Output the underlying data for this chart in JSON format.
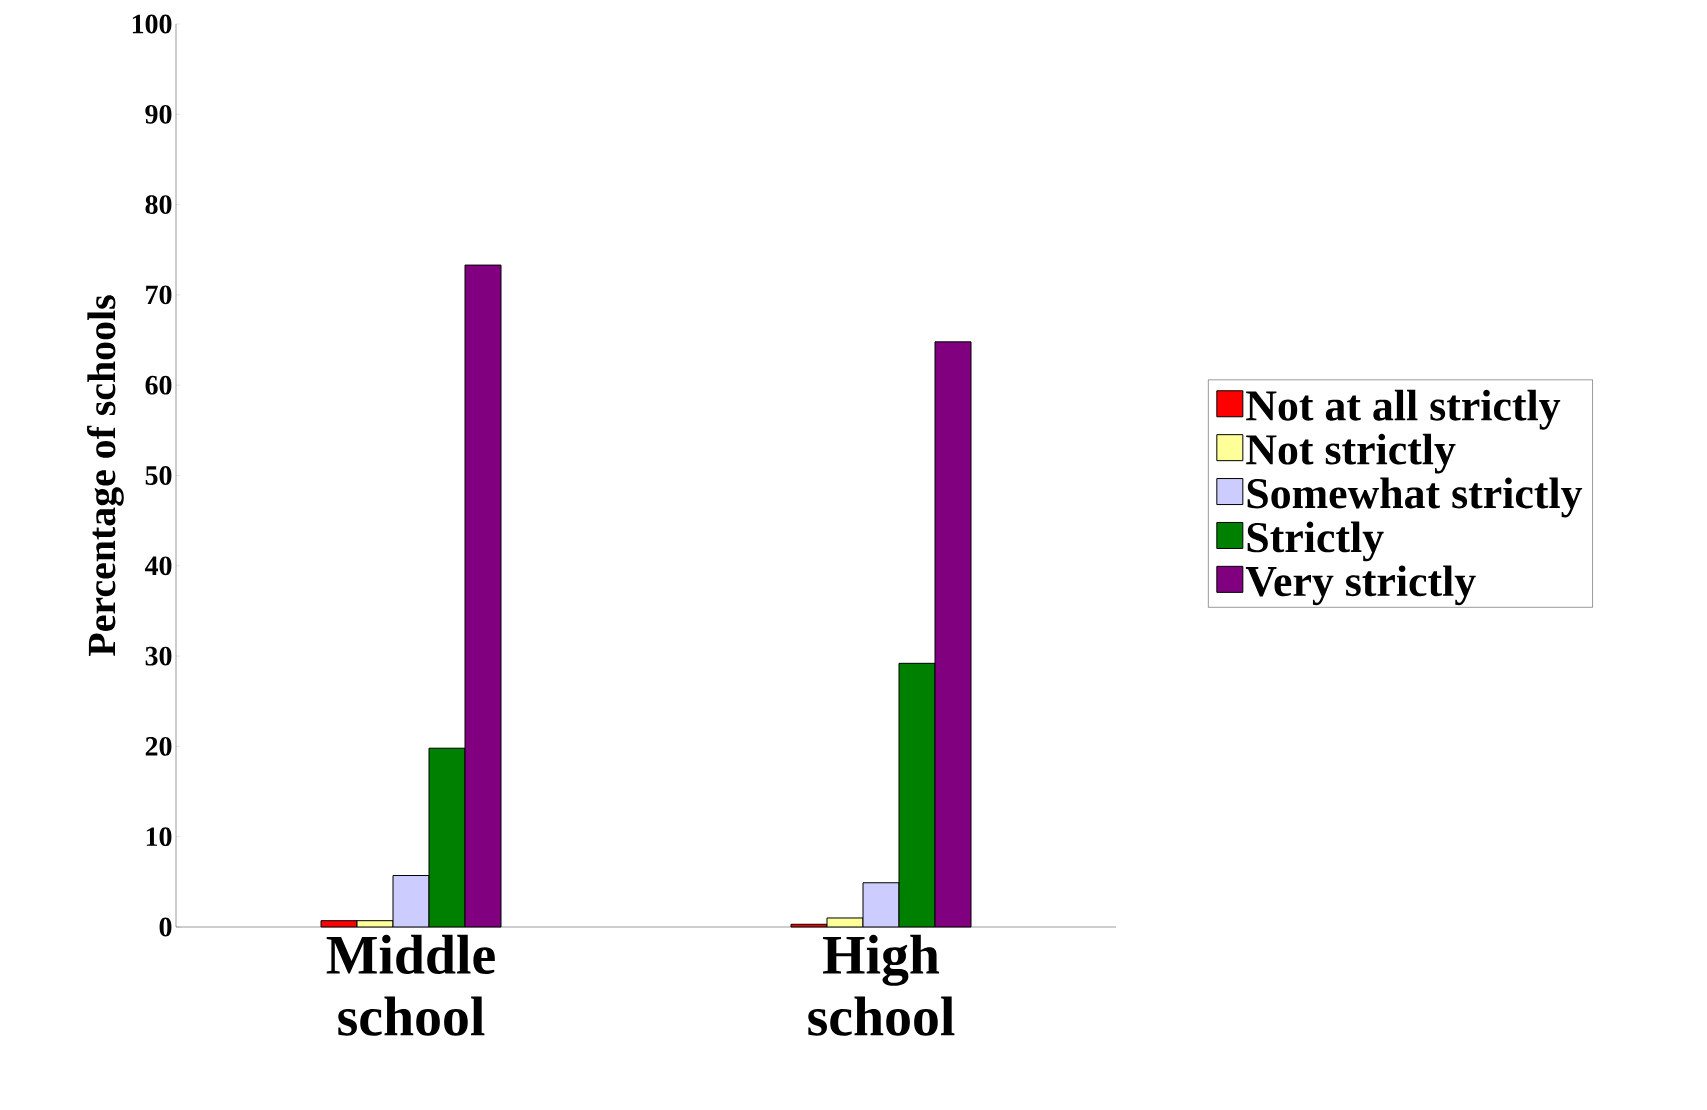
{
  "chart_data": {
    "type": "bar",
    "ylabel": "Percentage of schools",
    "categories": [
      "Middle school",
      "High school"
    ],
    "series": [
      {
        "name": "Not at all strictly",
        "color": "#ff0000",
        "values": [
          0.7,
          0.3
        ]
      },
      {
        "name": "Not strictly",
        "color": "#ffff99",
        "values": [
          0.7,
          1.0
        ]
      },
      {
        "name": "Somewhat strictly",
        "color": "#ccccff",
        "values": [
          5.7,
          4.9
        ]
      },
      {
        "name": "Strictly",
        "color": "#008000",
        "values": [
          19.8,
          29.2
        ]
      },
      {
        "name": "Very strictly",
        "color": "#800080",
        "values": [
          73.3,
          64.8
        ]
      }
    ],
    "ylim": [
      0,
      100
    ],
    "yticks": [
      0,
      10,
      20,
      30,
      40,
      50,
      60,
      70,
      80,
      90,
      100
    ],
    "legend": "right"
  }
}
